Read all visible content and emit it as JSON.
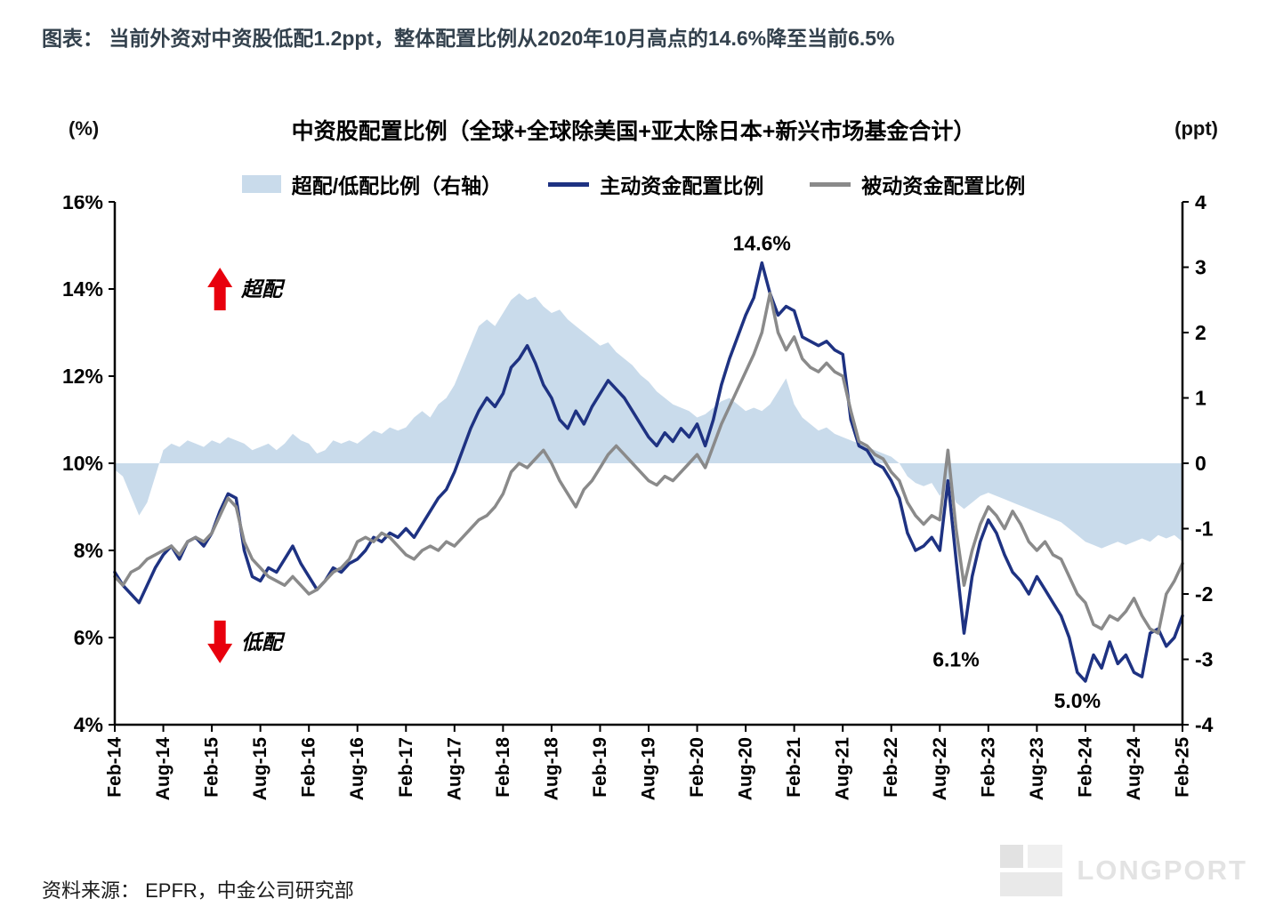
{
  "headline": "图表： 当前外资对中资股低配1.2ppt，整体配置比例从2020年10月高点的14.6%降至当前6.5%",
  "source": "资料来源： EPFR，中金公司研究部",
  "watermark": "LONGPORT",
  "chart_data": {
    "type": "line",
    "title": "中资股配置比例（全球+全球除美国+亚太除日本+新兴市场基金合计）",
    "x_count": 133,
    "tick_step_months": 6,
    "x_tick_labels": [
      "Feb-14",
      "Aug-14",
      "Feb-15",
      "Aug-15",
      "Feb-16",
      "Aug-16",
      "Feb-17",
      "Aug-17",
      "Feb-18",
      "Aug-18",
      "Feb-19",
      "Aug-19",
      "Feb-20",
      "Aug-20",
      "Feb-21",
      "Aug-21",
      "Feb-22",
      "Aug-22",
      "Feb-23",
      "Aug-23",
      "Feb-24",
      "Aug-24",
      "Feb-25"
    ],
    "left_axis": {
      "unit": "(%)",
      "range": [
        4,
        16
      ],
      "ticks": [
        "16%",
        "14%",
        "12%",
        "10%",
        "8%",
        "6%",
        "4%"
      ],
      "tick_values": [
        16,
        14,
        12,
        10,
        8,
        6,
        4
      ],
      "color": "#000000"
    },
    "right_axis": {
      "unit": "(ppt)",
      "range": [
        -4,
        4
      ],
      "ticks": [
        "4",
        "3",
        "2",
        "1",
        "0",
        "-1",
        "-2",
        "-3",
        "-4"
      ],
      "tick_values": [
        4,
        3,
        2,
        1,
        0,
        -1,
        -2,
        -3,
        -4
      ],
      "color": "#fe0000"
    },
    "series": [
      {
        "name": "超配/低配比例（右轴）",
        "axis": "right",
        "style": "area",
        "color": "#c9dbeb",
        "values": [
          -0.1,
          -0.2,
          -0.5,
          -0.8,
          -0.6,
          -0.2,
          0.2,
          0.3,
          0.25,
          0.35,
          0.3,
          0.25,
          0.35,
          0.3,
          0.4,
          0.35,
          0.3,
          0.2,
          0.25,
          0.3,
          0.2,
          0.3,
          0.45,
          0.35,
          0.3,
          0.15,
          0.2,
          0.35,
          0.3,
          0.35,
          0.3,
          0.4,
          0.5,
          0.45,
          0.55,
          0.5,
          0.55,
          0.7,
          0.8,
          0.7,
          0.9,
          1.0,
          1.2,
          1.5,
          1.8,
          2.1,
          2.2,
          2.1,
          2.3,
          2.5,
          2.6,
          2.5,
          2.55,
          2.4,
          2.3,
          2.35,
          2.2,
          2.1,
          2.0,
          1.9,
          1.8,
          1.85,
          1.7,
          1.6,
          1.5,
          1.35,
          1.25,
          1.1,
          1.0,
          0.9,
          0.85,
          0.8,
          0.7,
          0.75,
          0.85,
          0.95,
          1.0,
          0.9,
          0.8,
          0.85,
          0.8,
          0.9,
          1.1,
          1.3,
          0.9,
          0.7,
          0.6,
          0.5,
          0.55,
          0.45,
          0.4,
          0.35,
          0.3,
          0.25,
          0.2,
          0.15,
          0.1,
          0.0,
          -0.2,
          -0.3,
          -0.35,
          -0.3,
          -0.5,
          -0.3,
          -0.6,
          -0.7,
          -0.6,
          -0.5,
          -0.45,
          -0.5,
          -0.55,
          -0.6,
          -0.65,
          -0.7,
          -0.75,
          -0.8,
          -0.85,
          -0.9,
          -1.0,
          -1.1,
          -1.2,
          -1.25,
          -1.3,
          -1.25,
          -1.2,
          -1.25,
          -1.2,
          -1.15,
          -1.2,
          -1.1,
          -1.15,
          -1.1,
          -1.2
        ]
      },
      {
        "name": "主动资金配置比例",
        "axis": "left",
        "style": "line",
        "color": "#1e3282",
        "values": [
          7.5,
          7.2,
          7.0,
          6.8,
          7.2,
          7.6,
          7.9,
          8.1,
          7.8,
          8.2,
          8.3,
          8.1,
          8.4,
          8.9,
          9.3,
          9.2,
          8.0,
          7.4,
          7.3,
          7.6,
          7.5,
          7.8,
          8.1,
          7.7,
          7.4,
          7.1,
          7.3,
          7.6,
          7.5,
          7.7,
          7.8,
          8.0,
          8.3,
          8.2,
          8.4,
          8.3,
          8.5,
          8.3,
          8.6,
          8.9,
          9.2,
          9.4,
          9.8,
          10.3,
          10.8,
          11.2,
          11.5,
          11.3,
          11.6,
          12.2,
          12.4,
          12.7,
          12.3,
          11.8,
          11.5,
          11.0,
          10.8,
          11.2,
          10.9,
          11.3,
          11.6,
          11.9,
          11.7,
          11.5,
          11.2,
          10.9,
          10.6,
          10.4,
          10.7,
          10.5,
          10.8,
          10.6,
          10.9,
          10.4,
          11.0,
          11.8,
          12.4,
          12.9,
          13.4,
          13.8,
          14.6,
          13.9,
          13.4,
          13.6,
          13.5,
          12.9,
          12.8,
          12.7,
          12.8,
          12.6,
          12.5,
          11.0,
          10.4,
          10.3,
          10.0,
          9.9,
          9.6,
          9.2,
          8.4,
          8.0,
          8.1,
          8.3,
          8.0,
          9.6,
          7.8,
          6.1,
          7.4,
          8.2,
          8.7,
          8.4,
          7.9,
          7.5,
          7.3,
          7.0,
          7.4,
          7.1,
          6.8,
          6.5,
          6.0,
          5.2,
          5.0,
          5.6,
          5.3,
          5.9,
          5.4,
          5.6,
          5.2,
          5.1,
          6.1,
          6.2,
          5.8,
          6.0,
          6.5
        ]
      },
      {
        "name": "被动资金配置比例",
        "axis": "left",
        "style": "line",
        "color": "#8a8a8a",
        "values": [
          7.4,
          7.2,
          7.5,
          7.6,
          7.8,
          7.9,
          8.0,
          8.1,
          7.9,
          8.2,
          8.3,
          8.2,
          8.4,
          8.8,
          9.2,
          9.0,
          8.2,
          7.8,
          7.6,
          7.4,
          7.3,
          7.2,
          7.4,
          7.2,
          7.0,
          7.1,
          7.3,
          7.5,
          7.6,
          7.8,
          8.2,
          8.3,
          8.2,
          8.4,
          8.3,
          8.1,
          7.9,
          7.8,
          8.0,
          8.1,
          8.0,
          8.2,
          8.1,
          8.3,
          8.5,
          8.7,
          8.8,
          9.0,
          9.3,
          9.8,
          10.0,
          9.9,
          10.1,
          10.3,
          10.0,
          9.6,
          9.3,
          9.0,
          9.4,
          9.6,
          9.9,
          10.2,
          10.4,
          10.2,
          10.0,
          9.8,
          9.6,
          9.5,
          9.7,
          9.6,
          9.8,
          10.0,
          10.2,
          9.9,
          10.4,
          10.9,
          11.3,
          11.7,
          12.1,
          12.5,
          13.0,
          13.9,
          13.0,
          12.6,
          12.9,
          12.4,
          12.2,
          12.1,
          12.3,
          12.1,
          12.0,
          11.2,
          10.5,
          10.4,
          10.2,
          10.1,
          9.8,
          9.6,
          9.1,
          8.8,
          8.6,
          8.8,
          8.7,
          10.3,
          8.5,
          7.2,
          8.0,
          8.6,
          9.0,
          8.8,
          8.5,
          8.9,
          8.6,
          8.2,
          8.0,
          8.2,
          7.9,
          7.8,
          7.4,
          7.0,
          6.8,
          6.3,
          6.2,
          6.5,
          6.4,
          6.6,
          6.9,
          6.5,
          6.2,
          6.1,
          7.0,
          7.3,
          7.7
        ]
      }
    ],
    "annotations": [
      {
        "kind": "text",
        "text": "14.6%",
        "x_index": 80,
        "value": 15.05,
        "color": "#111111"
      },
      {
        "kind": "text",
        "text": "6.1%",
        "x_index": 104,
        "value": 5.5,
        "color": "#111111"
      },
      {
        "kind": "text",
        "text": "5.0%",
        "x_index": 119,
        "value": 4.55,
        "color": "#111111"
      },
      {
        "kind": "arrow-up",
        "label": "超配",
        "x_index": 13,
        "value": 14.0,
        "color": "#e8000d"
      },
      {
        "kind": "arrow-down",
        "label": "低配",
        "x_index": 13,
        "value": 5.9,
        "color": "#e8000d"
      }
    ]
  }
}
